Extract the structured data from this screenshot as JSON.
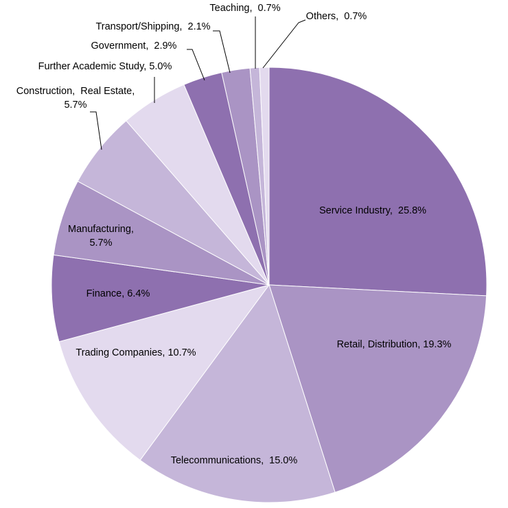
{
  "chart_data": {
    "type": "pie",
    "slices": [
      {
        "label": "Service Industry,  25.8%",
        "name": "Service Industry",
        "value": 25.8,
        "color": "#8e70af"
      },
      {
        "label": "Retail, Distribution, 19.3%",
        "name": "Retail, Distribution",
        "value": 19.3,
        "color": "#aa94c4"
      },
      {
        "label": "Telecommunications,  15.0%",
        "name": "Telecommunications",
        "value": 15.0,
        "color": "#c5b6d9"
      },
      {
        "label": "Trading Companies, 10.7%",
        "name": "Trading Companies",
        "value": 10.7,
        "color": "#e3daee"
      },
      {
        "label": "Finance, 6.4%",
        "name": "Finance",
        "value": 6.4,
        "color": "#8e70af"
      },
      {
        "label": [
          "Manufacturing,",
          "5.7%"
        ],
        "name": "Manufacturing",
        "value": 5.7,
        "color": "#aa94c4"
      },
      {
        "label": [
          "Construction,  Real Estate,",
          "5.7%"
        ],
        "name": "Construction, Real Estate",
        "value": 5.7,
        "color": "#c5b6d9"
      },
      {
        "label": "Further Academic Study, 5.0%",
        "name": "Further Academic Study",
        "value": 5.0,
        "color": "#e3daee"
      },
      {
        "label": "Government,  2.9%",
        "name": "Government",
        "value": 2.9,
        "color": "#8e70af"
      },
      {
        "label": "Transport/Shipping,  2.1%",
        "name": "Transport/Shipping",
        "value": 2.1,
        "color": "#aa94c4"
      },
      {
        "label": "Teaching,  0.7%",
        "name": "Teaching",
        "value": 0.7,
        "color": "#c5b6d9"
      },
      {
        "label": "Others,  0.7%",
        "name": "Others",
        "value": 0.7,
        "color": "#e3daee"
      }
    ],
    "start_angle": "12 o'clock",
    "direction": "clockwise",
    "legend": "none"
  }
}
